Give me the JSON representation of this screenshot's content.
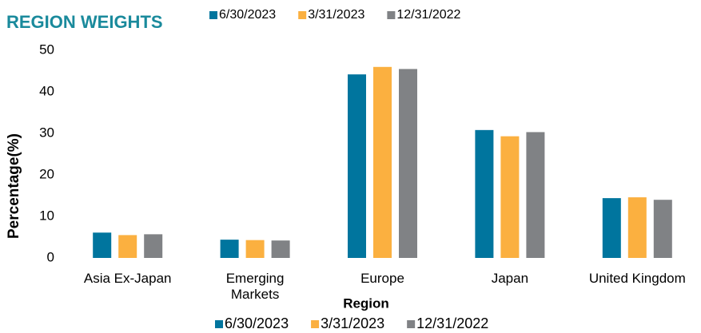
{
  "chart_data": {
    "type": "bar",
    "title": "REGION WEIGHTS",
    "x_label": "Region",
    "y_label": "Percentage(%)",
    "categories": [
      "Asia Ex-Japan",
      "Emerging Markets",
      "Europe",
      "Japan",
      "United Kingdom"
    ],
    "series": [
      {
        "name": "6/30/2023",
        "color": "#00759e",
        "values": [
          6.1,
          4.4,
          44.2,
          30.8,
          14.4
        ]
      },
      {
        "name": "3/31/2023",
        "color": "#fbb040",
        "values": [
          5.5,
          4.3,
          46.0,
          29.3,
          14.6
        ]
      },
      {
        "name": "12/31/2022",
        "color": "#808285",
        "values": [
          5.7,
          4.2,
          45.5,
          30.3,
          14.0
        ]
      }
    ],
    "ylim": [
      0,
      50
    ],
    "yticks": [
      0,
      10,
      20,
      30,
      40,
      50
    ],
    "grid": false
  }
}
